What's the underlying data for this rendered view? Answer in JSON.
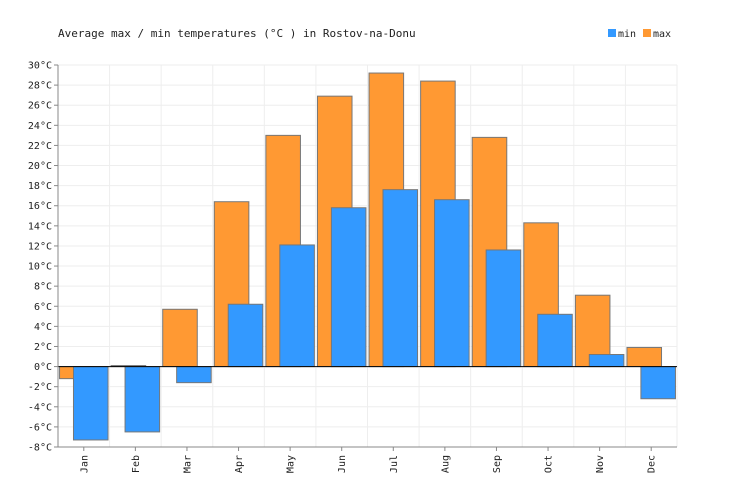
{
  "colors": {
    "min": "#3399ff",
    "max": "#ff9933",
    "bar_stroke": "#777777",
    "grid": "#eeeeee",
    "axis": "#888888",
    "zero_line": "#000000"
  },
  "chart_data": {
    "type": "bar",
    "title": "Average max / min temperatures (°C ) in Rostov-na-Donu",
    "xlabel": "",
    "ylabel": "",
    "categories": [
      "Jan",
      "Feb",
      "Mar",
      "Apr",
      "May",
      "Jun",
      "Jul",
      "Aug",
      "Sep",
      "Oct",
      "Nov",
      "Dec"
    ],
    "series": [
      {
        "name": "min",
        "values": [
          -7.3,
          -6.5,
          -1.6,
          6.2,
          12.1,
          15.8,
          17.6,
          16.6,
          11.6,
          5.2,
          1.2,
          -3.2
        ]
      },
      {
        "name": "max",
        "values": [
          -1.2,
          0.1,
          5.7,
          16.4,
          23.0,
          26.9,
          29.2,
          28.4,
          22.8,
          14.3,
          7.1,
          1.9
        ]
      }
    ],
    "ylim": [
      -8,
      30
    ],
    "ytick_step": 2,
    "ytick_unit": "°C",
    "grid": true,
    "legend": "top-right"
  }
}
